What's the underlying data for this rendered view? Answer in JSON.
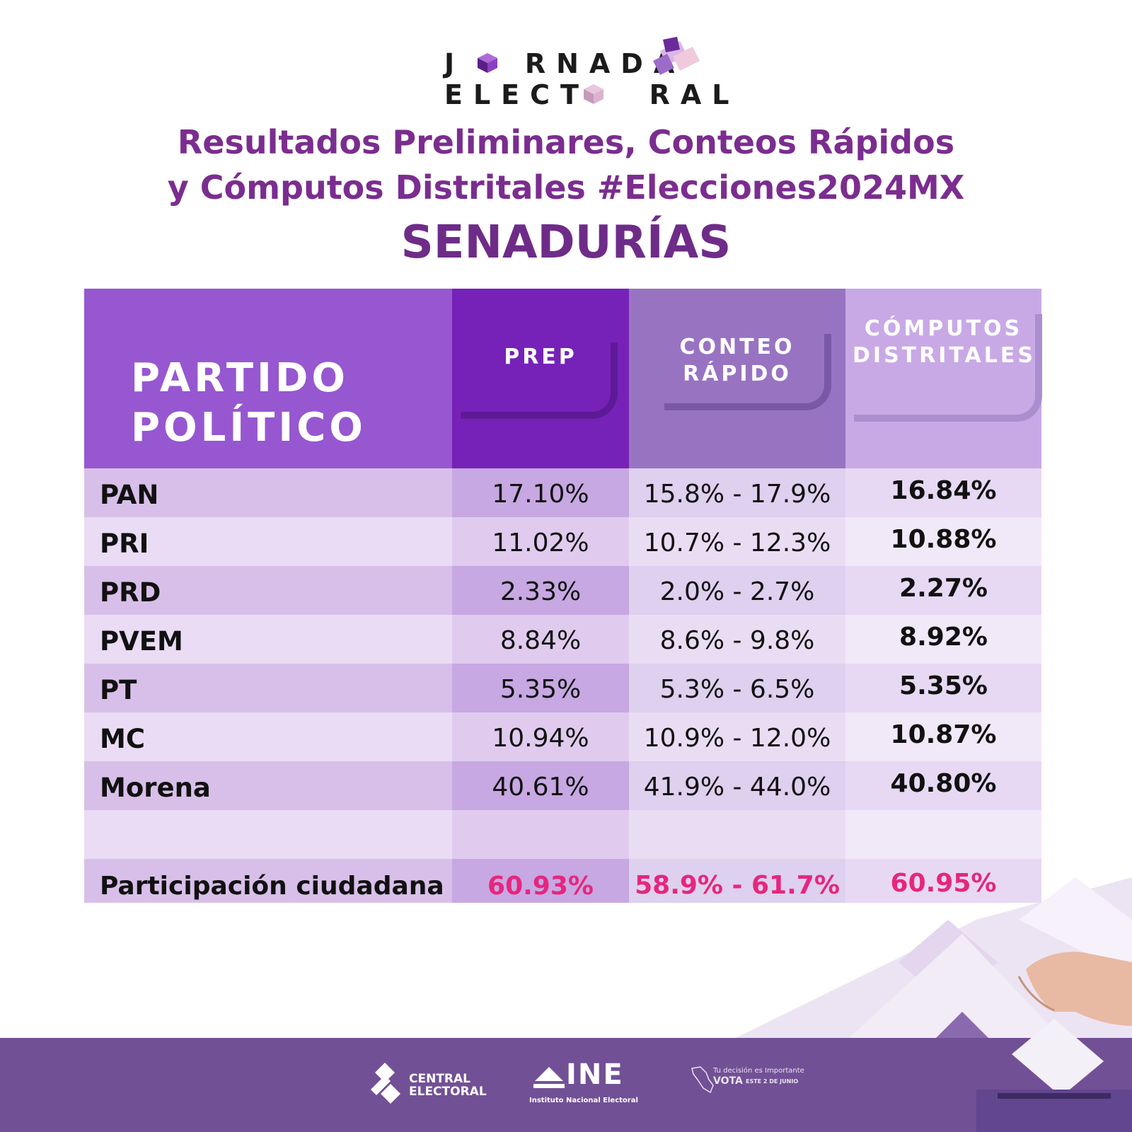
{
  "logo": {
    "line1": "J RNADA",
    "line2": "ELECT RAL",
    "text": "JORNADA ELECTORAL"
  },
  "heading": {
    "line1": "Resultados Preliminares, Conteos Rápidos",
    "line2": "y Cómputos Distritales #Elecciones2024MX",
    "title": "SENADURÍAS"
  },
  "table": {
    "headers": {
      "party": "PARTIDO POLÍTICO",
      "prep": "PREP",
      "conteo": "CONTEO RÁPIDO",
      "computos": "CÓMPUTOS DISTRITALES"
    },
    "rows": [
      {
        "party": "PAN",
        "prep": "17.10%",
        "conteo": "15.8% - 17.9%",
        "computos": "16.84%"
      },
      {
        "party": "PRI",
        "prep": "11.02%",
        "conteo": "10.7% - 12.3%",
        "computos": "10.88%"
      },
      {
        "party": "PRD",
        "prep": "2.33%",
        "conteo": "2.0% - 2.7%",
        "computos": "2.27%"
      },
      {
        "party": "PVEM",
        "prep": "8.84%",
        "conteo": "8.6% - 9.8%",
        "computos": "8.92%"
      },
      {
        "party": "PT",
        "prep": "5.35%",
        "conteo": "5.3% - 6.5%",
        "computos": "5.35%"
      },
      {
        "party": "MC",
        "prep": "10.94%",
        "conteo": "10.9% - 12.0%",
        "computos": "10.87%"
      },
      {
        "party": "Morena",
        "prep": "40.61%",
        "conteo": "41.9% - 44.0%",
        "computos": "40.80%"
      }
    ],
    "total": {
      "party": "Participación ciudadana",
      "prep": "60.93%",
      "conteo": "58.9% - 61.7%",
      "computos": "60.95%"
    }
  },
  "footer": {
    "central_electoral": "CENTRAL ELECTORAL",
    "ine": "INE",
    "ine_sub": "Instituto Nacional Electoral",
    "vota_line1": "Tu decisión es Importante",
    "vota_line2": "VOTA",
    "vota_line3": "ESTE 2 DE JUNIO"
  },
  "colors": {
    "heading": "#7b2d8f",
    "highlight": "#e6267e",
    "footer": "#725096"
  }
}
